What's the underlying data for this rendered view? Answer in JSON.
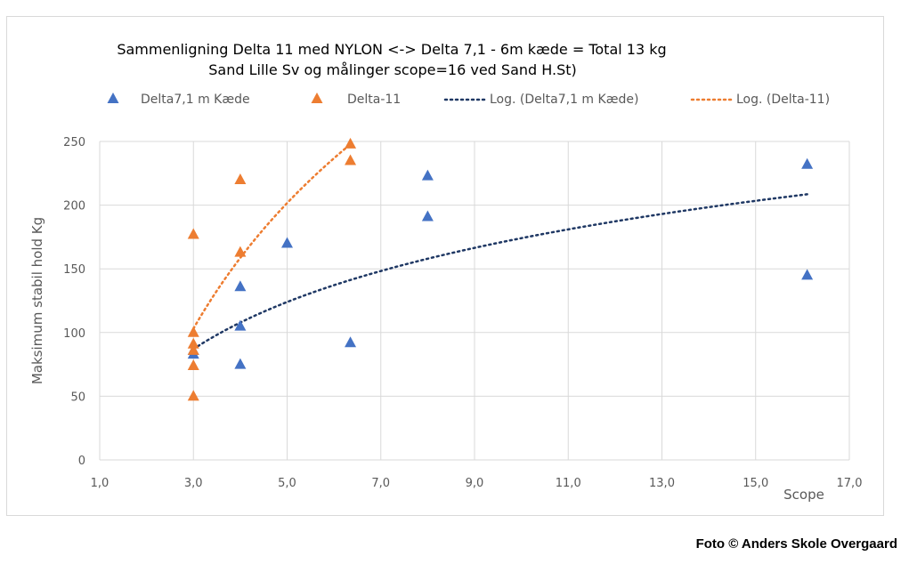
{
  "chart_data": {
    "type": "scatter",
    "title": [
      "Sammenligning Delta 11 med NYLON <->  Delta 7,1 - 6m kæde = Total 13 kg",
      "Sand Lille Sv  og målinger scope=16 ved Sand H.St)"
    ],
    "xlabel": "Scope",
    "ylabel": "Maksimum stabil hold Kg",
    "xlim": [
      1,
      17
    ],
    "ylim": [
      0,
      250
    ],
    "xticks": [
      1,
      3,
      5,
      7,
      9,
      11,
      13,
      15,
      17
    ],
    "xtick_labels": [
      "1,0",
      "3,0",
      "5,0",
      "7,0",
      "9,0",
      "11,0",
      "13,0",
      "15,0",
      "17,0"
    ],
    "yticks": [
      0,
      50,
      100,
      150,
      200,
      250
    ],
    "ytick_labels": [
      "0",
      "50",
      "100",
      "150",
      "200",
      "250"
    ],
    "grid": true,
    "legend_position": "top",
    "series": [
      {
        "name": "Delta7,1 m Kæde",
        "color": "#4472c4",
        "marker": "triangle",
        "points": [
          [
            3,
            83
          ],
          [
            3,
            86
          ],
          [
            4,
            136
          ],
          [
            4,
            105
          ],
          [
            4,
            75
          ],
          [
            5,
            170
          ],
          [
            6.35,
            92
          ],
          [
            8,
            223
          ],
          [
            8,
            191
          ],
          [
            16.1,
            232
          ],
          [
            16.1,
            145
          ]
        ]
      },
      {
        "name": "Delta-11",
        "color": "#ed7d31",
        "marker": "triangle",
        "points": [
          [
            3,
            177
          ],
          [
            3,
            100
          ],
          [
            3,
            91
          ],
          [
            3,
            86
          ],
          [
            3,
            74
          ],
          [
            3,
            50
          ],
          [
            4,
            220
          ],
          [
            4,
            163
          ],
          [
            6.35,
            248
          ],
          [
            6.35,
            235
          ]
        ]
      }
    ],
    "trendlines": [
      {
        "name": "Log. (Delta7,1 m Kæde)",
        "color": "#1f3864",
        "type": "log",
        "a": 72.3,
        "b": 7.6,
        "x_range": [
          3,
          16.1
        ]
      },
      {
        "name": "Log. (Delta-11)",
        "color": "#ed7d31",
        "type": "log",
        "a": 193,
        "b": -109,
        "x_range": [
          3,
          6.35
        ]
      }
    ]
  },
  "credit": "Foto © Anders Skole Overgaard"
}
